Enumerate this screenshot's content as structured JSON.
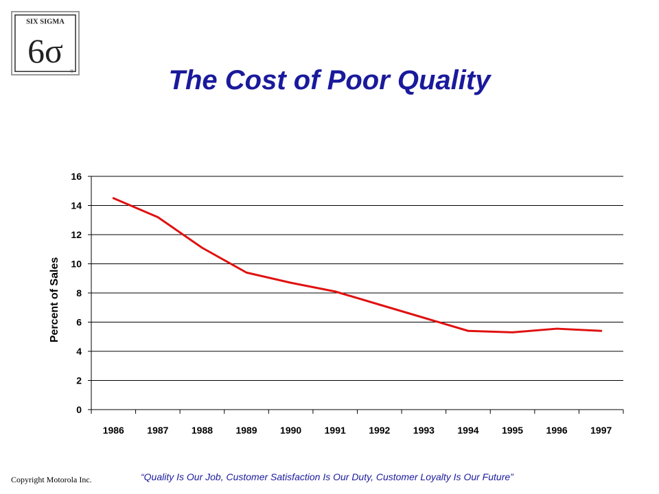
{
  "logo": {
    "text": "SIX SIGMA",
    "symbol": "6σ",
    "mark": "®"
  },
  "title": "The Cost of Poor Quality",
  "chart_data": {
    "type": "line",
    "title": "The Cost of Poor Quality",
    "xlabel": "",
    "ylabel": "Percent of Sales",
    "x": [
      "1986",
      "1987",
      "1988",
      "1989",
      "1990",
      "1991",
      "1992",
      "1993",
      "1994",
      "1995",
      "1996",
      "1997"
    ],
    "series": [
      {
        "values": [
          14.5,
          13.2,
          11.1,
          9.4,
          8.7,
          8.1,
          7.2,
          6.3,
          5.4,
          5.3,
          5.55,
          5.4
        ],
        "color": "#e01010"
      }
    ],
    "ylim": [
      0,
      16
    ],
    "yticks": [
      0,
      2,
      4,
      6,
      8,
      10,
      12,
      14,
      16
    ],
    "grid": true
  },
  "footer": {
    "copyright": "Copyright Motorola Inc.",
    "motto": "“Quality Is Our Job, Customer Satisfaction Is Our Duty, Customer Loyalty Is Our Future”"
  }
}
